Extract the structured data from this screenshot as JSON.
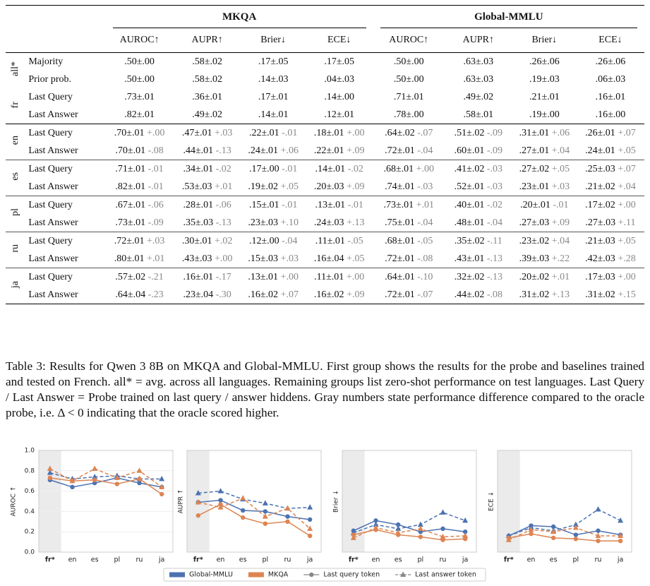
{
  "table": {
    "groups": [
      {
        "name": "MKQA",
        "columns": [
          "AUROC↑",
          "AUPR↑",
          "Brier↓",
          "ECE↓"
        ]
      },
      {
        "name": "Global-MMLU",
        "columns": [
          "AUROC↑",
          "AUPR↑",
          "Brier↓",
          "ECE↓"
        ]
      }
    ],
    "blocks": [
      {
        "labels": [
          "all*",
          "fr"
        ],
        "rows": [
          {
            "method": "Majority",
            "cells": [
              {
                "value": ".50±.00"
              },
              {
                "value": ".58±.02"
              },
              {
                "value": ".17±.05"
              },
              {
                "value": ".17±.05"
              },
              {
                "value": ".50±.00"
              },
              {
                "value": ".63±.03"
              },
              {
                "value": ".26±.06"
              },
              {
                "value": ".26±.06"
              }
            ]
          },
          {
            "method": "Prior prob.",
            "cells": [
              {
                "value": ".50±.00"
              },
              {
                "value": ".58±.02"
              },
              {
                "value": ".14±.03"
              },
              {
                "value": ".04±.03"
              },
              {
                "value": ".50±.00"
              },
              {
                "value": ".63±.03"
              },
              {
                "value": ".19±.03"
              },
              {
                "value": ".06±.03"
              }
            ]
          },
          {
            "method": "Last Query",
            "cells": [
              {
                "value": ".73±.01"
              },
              {
                "value": ".36±.01"
              },
              {
                "value": ".17±.01"
              },
              {
                "value": ".14±.00"
              },
              {
                "value": ".71±.01"
              },
              {
                "value": ".49±.02"
              },
              {
                "value": ".21±.01"
              },
              {
                "value": ".16±.01"
              }
            ]
          },
          {
            "method": "Last Answer",
            "cells": [
              {
                "value": ".82±.01"
              },
              {
                "value": ".49±.02"
              },
              {
                "value": ".14±.01"
              },
              {
                "value": ".12±.01"
              },
              {
                "value": ".78±.00"
              },
              {
                "value": ".58±.01"
              },
              {
                "value": ".19±.00"
              },
              {
                "value": ".16±.00"
              }
            ]
          }
        ]
      },
      {
        "labels": [
          "en"
        ],
        "rows": [
          {
            "method": "Last Query",
            "cells": [
              {
                "value": ".70±.01",
                "delta": "+.00"
              },
              {
                "value": ".47±.01",
                "delta": "+.03"
              },
              {
                "value": ".22±.01",
                "delta": "-.01"
              },
              {
                "value": ".18±.01",
                "delta": "+.00"
              },
              {
                "value": ".64±.02",
                "delta": "-.07"
              },
              {
                "value": ".51±.02",
                "delta": "-.09"
              },
              {
                "value": ".31±.01",
                "delta": "+.06"
              },
              {
                "value": ".26±.01",
                "delta": "+.07"
              }
            ]
          },
          {
            "method": "Last Answer",
            "cells": [
              {
                "value": ".70±.01",
                "delta": "-.08"
              },
              {
                "value": ".44±.01",
                "delta": "-.13"
              },
              {
                "value": ".24±.01",
                "delta": "+.06"
              },
              {
                "value": ".22±.01",
                "delta": "+.09"
              },
              {
                "value": ".72±.01",
                "delta": "-.04"
              },
              {
                "value": ".60±.01",
                "delta": "-.09"
              },
              {
                "value": ".27±.01",
                "delta": "+.04"
              },
              {
                "value": ".24±.01",
                "delta": "+.05"
              }
            ]
          }
        ]
      },
      {
        "labels": [
          "es"
        ],
        "rows": [
          {
            "method": "Last Query",
            "cells": [
              {
                "value": ".71±.01",
                "delta": "-.01"
              },
              {
                "value": ".34±.01",
                "delta": "-.02"
              },
              {
                "value": ".17±.00",
                "delta": "-.01"
              },
              {
                "value": ".14±.01",
                "delta": "-.02"
              },
              {
                "value": ".68±.01",
                "delta": "+.00"
              },
              {
                "value": ".41±.02",
                "delta": "-.03"
              },
              {
                "value": ".27±.02",
                "delta": "+.05"
              },
              {
                "value": ".25±.03",
                "delta": "+.07"
              }
            ]
          },
          {
            "method": "Last Answer",
            "cells": [
              {
                "value": ".82±.01",
                "delta": "-.01"
              },
              {
                "value": ".53±.03",
                "delta": "+.01"
              },
              {
                "value": ".19±.02",
                "delta": "+.05"
              },
              {
                "value": ".20±.03",
                "delta": "+.09"
              },
              {
                "value": ".74±.01",
                "delta": "-.03"
              },
              {
                "value": ".52±.01",
                "delta": "-.03"
              },
              {
                "value": ".23±.01",
                "delta": "+.03"
              },
              {
                "value": ".21±.02",
                "delta": "+.04"
              }
            ]
          }
        ]
      },
      {
        "labels": [
          "pl"
        ],
        "rows": [
          {
            "method": "Last Query",
            "cells": [
              {
                "value": ".67±.01",
                "delta": "-.06"
              },
              {
                "value": ".28±.01",
                "delta": "-.06"
              },
              {
                "value": ".15±.01",
                "delta": "-.01"
              },
              {
                "value": ".13±.01",
                "delta": "-.01"
              },
              {
                "value": ".73±.01",
                "delta": "+.01"
              },
              {
                "value": ".40±.01",
                "delta": "-.02"
              },
              {
                "value": ".20±.01",
                "delta": "-.01"
              },
              {
                "value": ".17±.02",
                "delta": "+.00"
              }
            ]
          },
          {
            "method": "Last Answer",
            "cells": [
              {
                "value": ".73±.01",
                "delta": "-.09"
              },
              {
                "value": ".35±.03",
                "delta": "-.13"
              },
              {
                "value": ".23±.03",
                "delta": "+.10"
              },
              {
                "value": ".24±.03",
                "delta": "+.13"
              },
              {
                "value": ".75±.01",
                "delta": "-.04"
              },
              {
                "value": ".48±.01",
                "delta": "-.04"
              },
              {
                "value": ".27±.03",
                "delta": "+.09"
              },
              {
                "value": ".27±.03",
                "delta": "+.11"
              }
            ]
          }
        ]
      },
      {
        "labels": [
          "ru"
        ],
        "rows": [
          {
            "method": "Last Query",
            "cells": [
              {
                "value": ".72±.01",
                "delta": "+.03"
              },
              {
                "value": ".30±.01",
                "delta": "+.02"
              },
              {
                "value": ".12±.00",
                "delta": "-.04"
              },
              {
                "value": ".11±.01",
                "delta": "-.05"
              },
              {
                "value": ".68±.01",
                "delta": "-.05"
              },
              {
                "value": ".35±.02",
                "delta": "-.11"
              },
              {
                "value": ".23±.02",
                "delta": "+.04"
              },
              {
                "value": ".21±.03",
                "delta": "+.05"
              }
            ]
          },
          {
            "method": "Last Answer",
            "cells": [
              {
                "value": ".80±.01",
                "delta": "+.01"
              },
              {
                "value": ".43±.03",
                "delta": "+.00"
              },
              {
                "value": ".15±.03",
                "delta": "+.03"
              },
              {
                "value": ".16±.04",
                "delta": "+.05"
              },
              {
                "value": ".72±.01",
                "delta": "-.08"
              },
              {
                "value": ".43±.01",
                "delta": "-.13"
              },
              {
                "value": ".39±.03",
                "delta": "+.22"
              },
              {
                "value": ".42±.03",
                "delta": "+.28"
              }
            ]
          }
        ]
      },
      {
        "labels": [
          "ja"
        ],
        "rows": [
          {
            "method": "Last Query",
            "cells": [
              {
                "value": ".57±.02",
                "delta": "-.21"
              },
              {
                "value": ".16±.01",
                "delta": "-.17"
              },
              {
                "value": ".13±.01",
                "delta": "+.00"
              },
              {
                "value": ".11±.01",
                "delta": "+.00"
              },
              {
                "value": ".64±.01",
                "delta": "-.10"
              },
              {
                "value": ".32±.02",
                "delta": "-.13"
              },
              {
                "value": ".20±.02",
                "delta": "+.01"
              },
              {
                "value": ".17±.03",
                "delta": "+.00"
              }
            ]
          },
          {
            "method": "Last Answer",
            "cells": [
              {
                "value": ".64±.04",
                "delta": "-.23"
              },
              {
                "value": ".23±.04",
                "delta": "-.30"
              },
              {
                "value": ".16±.02",
                "delta": "+.07"
              },
              {
                "value": ".16±.02",
                "delta": "+.09"
              },
              {
                "value": ".72±.01",
                "delta": "-.07"
              },
              {
                "value": ".44±.02",
                "delta": "-.08"
              },
              {
                "value": ".31±.02",
                "delta": "+.13"
              },
              {
                "value": ".31±.02",
                "delta": "+.15"
              }
            ]
          }
        ]
      }
    ]
  },
  "caption": "Table 3: Results for Qwen 3 8B on MKQA and Global-MMLU. First group shows the results for the probe and baselines trained and tested on French. all* = avg. across all languages. Remaining groups list zero-shot performance on test languages. Last Query / Last Answer = Probe trained on last query / answer hiddens. Gray numbers state performance difference compared to the oracle probe, i.e. Δ < 0 indicating that the oracle scored higher.",
  "chart_data": [
    {
      "type": "line",
      "ylabel": "AUROC ↑",
      "categories": [
        "fr*",
        "en",
        "es",
        "pl",
        "ru",
        "ja"
      ],
      "ylim": [
        0,
        1
      ],
      "yticks": [
        {
          "value": 0,
          "label": "0.0"
        },
        {
          "value": 0.2,
          "label": "0.2"
        },
        {
          "value": 0.4,
          "label": "0.4"
        },
        {
          "value": 0.6,
          "label": "0.6"
        },
        {
          "value": 0.8,
          "label": "0.8"
        },
        {
          "value": 1,
          "label": "1.0"
        }
      ],
      "grid": true,
      "series": [
        {
          "name": "Global-MMLU",
          "style": "solid-circle",
          "color": "#4c72b0",
          "values": [
            0.71,
            0.64,
            0.68,
            0.73,
            0.68,
            0.64
          ]
        },
        {
          "name": "Global-MMLU",
          "style": "dashed-triangle",
          "color": "#4c72b0",
          "values": [
            0.78,
            0.72,
            0.74,
            0.75,
            0.72,
            0.72
          ]
        },
        {
          "name": "MKQA",
          "style": "solid-circle",
          "color": "#dd8452",
          "values": [
            0.73,
            0.7,
            0.71,
            0.67,
            0.72,
            0.57
          ]
        },
        {
          "name": "MKQA",
          "style": "dashed-triangle",
          "color": "#dd8452",
          "values": [
            0.82,
            0.7,
            0.82,
            0.73,
            0.8,
            0.64
          ]
        }
      ]
    },
    {
      "type": "line",
      "ylabel": "AUPR ↑",
      "categories": [
        "fr*",
        "en",
        "es",
        "pl",
        "ru",
        "ja"
      ],
      "ylim": [
        0,
        1
      ],
      "series": [
        {
          "name": "Global-MMLU",
          "style": "solid-circle",
          "color": "#4c72b0",
          "values": [
            0.49,
            0.51,
            0.41,
            0.4,
            0.35,
            0.32
          ]
        },
        {
          "name": "Global-MMLU",
          "style": "dashed-triangle",
          "color": "#4c72b0",
          "values": [
            0.58,
            0.6,
            0.52,
            0.48,
            0.43,
            0.44
          ]
        },
        {
          "name": "MKQA",
          "style": "solid-circle",
          "color": "#dd8452",
          "values": [
            0.36,
            0.47,
            0.34,
            0.28,
            0.3,
            0.16
          ]
        },
        {
          "name": "MKQA",
          "style": "dashed-triangle",
          "color": "#dd8452",
          "values": [
            0.49,
            0.44,
            0.53,
            0.35,
            0.43,
            0.23
          ]
        }
      ]
    },
    {
      "type": "line",
      "ylabel": "Brier ↓",
      "categories": [
        "fr*",
        "en",
        "es",
        "pl",
        "ru",
        "ja"
      ],
      "ylim": [
        0,
        1
      ],
      "series": [
        {
          "name": "Global-MMLU",
          "style": "solid-circle",
          "color": "#4c72b0",
          "values": [
            0.21,
            0.31,
            0.27,
            0.2,
            0.23,
            0.2
          ]
        },
        {
          "name": "Global-MMLU",
          "style": "dashed-triangle",
          "color": "#4c72b0",
          "values": [
            0.19,
            0.27,
            0.23,
            0.27,
            0.39,
            0.31
          ]
        },
        {
          "name": "MKQA",
          "style": "solid-circle",
          "color": "#dd8452",
          "values": [
            0.17,
            0.22,
            0.17,
            0.15,
            0.12,
            0.13
          ]
        },
        {
          "name": "MKQA",
          "style": "dashed-triangle",
          "color": "#dd8452",
          "values": [
            0.14,
            0.24,
            0.19,
            0.23,
            0.15,
            0.16
          ]
        }
      ]
    },
    {
      "type": "line",
      "ylabel": "ECE ↓",
      "categories": [
        "fr*",
        "en",
        "es",
        "pl",
        "ru",
        "ja"
      ],
      "ylim": [
        0,
        1
      ],
      "series": [
        {
          "name": "Global-MMLU",
          "style": "solid-circle",
          "color": "#4c72b0",
          "values": [
            0.16,
            0.26,
            0.25,
            0.17,
            0.21,
            0.17
          ]
        },
        {
          "name": "Global-MMLU",
          "style": "dashed-triangle",
          "color": "#4c72b0",
          "values": [
            0.16,
            0.24,
            0.21,
            0.27,
            0.42,
            0.31
          ]
        },
        {
          "name": "MKQA",
          "style": "solid-circle",
          "color": "#dd8452",
          "values": [
            0.14,
            0.18,
            0.14,
            0.13,
            0.11,
            0.11
          ]
        },
        {
          "name": "MKQA",
          "style": "dashed-triangle",
          "color": "#dd8452",
          "values": [
            0.12,
            0.22,
            0.2,
            0.24,
            0.16,
            0.16
          ]
        }
      ]
    }
  ],
  "legend": [
    {
      "label": "Global-MMLU",
      "style": "patch",
      "color": "#4c72b0"
    },
    {
      "label": "MKQA",
      "style": "patch",
      "color": "#dd8452"
    },
    {
      "label": "Last query token",
      "style": "solid-circle",
      "color": "#888888"
    },
    {
      "label": "Last answer token",
      "style": "dashed-triangle",
      "color": "#888888"
    }
  ]
}
